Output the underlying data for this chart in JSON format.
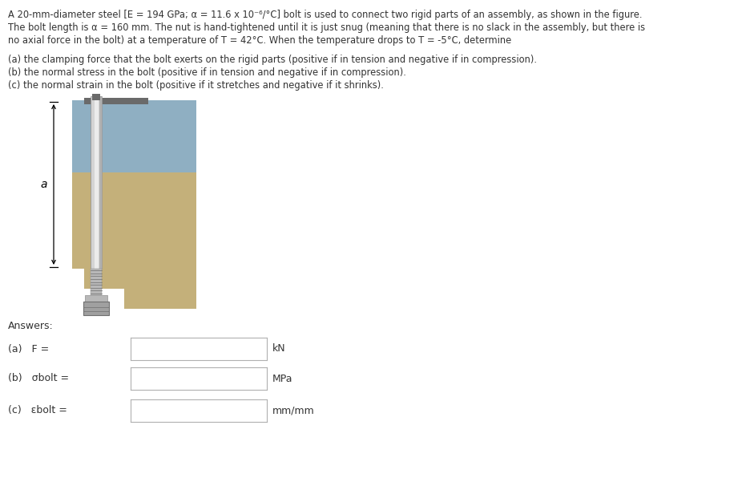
{
  "line1": "A 20-mm-diameter steel [E = 194 GPa; α = 11.6 x 10⁻⁶/°C] bolt is used to connect two rigid parts of an assembly, as shown in the figure.",
  "line2": "The bolt length is α = 160 mm. The nut is hand-tightened until it is just snug (meaning that there is no slack in the assembly, but there is",
  "line3": "no axial force in the bolt) at a temperature of T = 42°C. When the temperature drops to T = -5°C, determine",
  "q_a": "(a) the clamping force that the bolt exerts on the rigid parts (positive if in tension and negative if in compression).",
  "q_b": "(b) the normal stress in the bolt (positive if in tension and negative if in compression).",
  "q_c": "(c) the normal strain in the bolt (positive if it stretches and negative if it shrinks).",
  "answers_label": "Answers:",
  "label_a": "(a)   F =",
  "label_b": "(b)   σbolt =",
  "label_c": "(c)   εbolt =",
  "unit_a": "kN",
  "unit_b": "MPa",
  "unit_c": "mm/mm",
  "dim_label": "a",
  "blue_btn": "#3d9dd4",
  "input_border": "#b0b0b0",
  "bg": "#ffffff",
  "txt": "#333333",
  "col_blue": "#8fafc2",
  "col_tan": "#c4b07a",
  "col_bolt_light": "#d4d4d4",
  "col_bolt_mid": "#b8b8b8",
  "col_bolt_dark": "#909090",
  "col_nut": "#a0a0a0",
  "col_dark_top": "#6a6a6a"
}
